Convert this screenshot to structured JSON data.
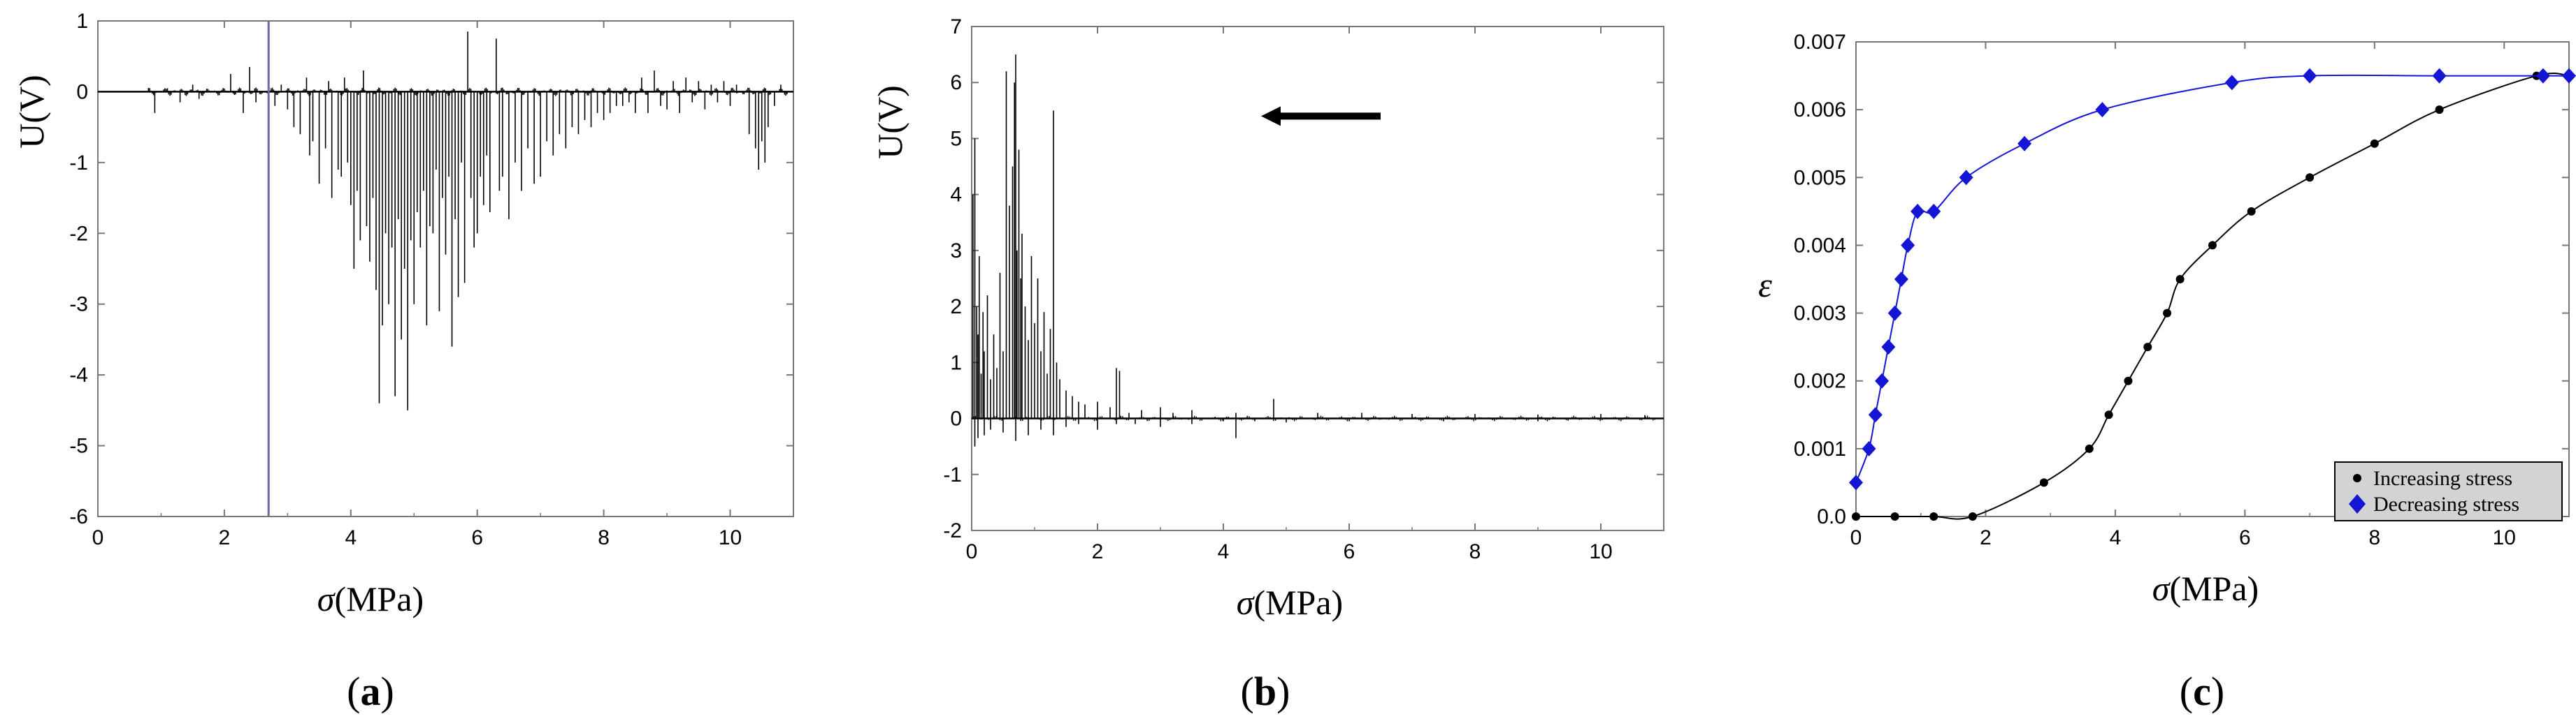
{
  "panels": [
    {
      "label": "a"
    },
    {
      "label": "b"
    },
    {
      "label": "c"
    }
  ],
  "chart_data": [
    {
      "type": "line",
      "panel": "a",
      "xlabel_symbol": "σ",
      "xlabel_unit": "(MPa)",
      "ylabel": "U(V)",
      "xlim": [
        0,
        11
      ],
      "ylim": [
        -6,
        1
      ],
      "xticks": [
        "0",
        "2",
        "4",
        "6",
        "8",
        "10"
      ],
      "yticks": [
        "-6",
        "-5",
        "-4",
        "-3",
        "-2",
        "-1",
        "0",
        "1"
      ],
      "grid": false,
      "vertical_marker_x": 2.7,
      "spikes": [
        [
          0.8,
          0.05
        ],
        [
          0.9,
          -0.3
        ],
        [
          1.1,
          0.05
        ],
        [
          1.3,
          -0.15
        ],
        [
          1.5,
          0.1
        ],
        [
          1.6,
          -0.1
        ],
        [
          2.1,
          0.25
        ],
        [
          2.3,
          -0.3
        ],
        [
          2.4,
          0.35
        ],
        [
          2.5,
          -0.15
        ],
        [
          2.7,
          0.2
        ],
        [
          2.8,
          -0.2
        ],
        [
          2.9,
          0.1
        ],
        [
          3.0,
          -0.25
        ],
        [
          3.1,
          -0.5
        ],
        [
          3.2,
          -0.6
        ],
        [
          3.3,
          0.2
        ],
        [
          3.35,
          -0.9
        ],
        [
          3.4,
          -0.7
        ],
        [
          3.5,
          -1.3
        ],
        [
          3.6,
          -0.8
        ],
        [
          3.65,
          0.15
        ],
        [
          3.7,
          -1.5
        ],
        [
          3.8,
          -1.1
        ],
        [
          3.85,
          -1.2
        ],
        [
          3.9,
          0.2
        ],
        [
          3.95,
          -1.0
        ],
        [
          4.0,
          -1.6
        ],
        [
          4.05,
          -2.5
        ],
        [
          4.1,
          -1.4
        ],
        [
          4.15,
          -2.1
        ],
        [
          4.2,
          0.3
        ],
        [
          4.25,
          -1.9
        ],
        [
          4.3,
          -2.4
        ],
        [
          4.35,
          -1.5
        ],
        [
          4.4,
          -2.8
        ],
        [
          4.45,
          -4.4
        ],
        [
          4.5,
          -3.3
        ],
        [
          4.55,
          -2.0
        ],
        [
          4.6,
          -3.0
        ],
        [
          4.65,
          -2.2
        ],
        [
          4.7,
          -4.3
        ],
        [
          4.75,
          -1.8
        ],
        [
          4.8,
          -3.5
        ],
        [
          4.85,
          -2.5
        ],
        [
          4.9,
          -4.5
        ],
        [
          4.95,
          -2.1
        ],
        [
          5.0,
          -3.0
        ],
        [
          5.05,
          -1.7
        ],
        [
          5.1,
          -2.2
        ],
        [
          5.15,
          -1.4
        ],
        [
          5.2,
          -3.3
        ],
        [
          5.25,
          -1.9
        ],
        [
          5.3,
          -2.0
        ],
        [
          5.35,
          -1.1
        ],
        [
          5.4,
          -3.1
        ],
        [
          5.45,
          -1.5
        ],
        [
          5.5,
          -2.3
        ],
        [
          5.55,
          -1.2
        ],
        [
          5.6,
          -3.6
        ],
        [
          5.65,
          -1.8
        ],
        [
          5.7,
          -2.9
        ],
        [
          5.75,
          -1.0
        ],
        [
          5.8,
          -2.7
        ],
        [
          5.85,
          0.85
        ],
        [
          5.9,
          -1.5
        ],
        [
          5.95,
          -2.2
        ],
        [
          6.0,
          -2.0
        ],
        [
          6.05,
          -1.2
        ],
        [
          6.1,
          -1.6
        ],
        [
          6.15,
          -0.9
        ],
        [
          6.2,
          -1.7
        ],
        [
          6.3,
          0.75
        ],
        [
          6.35,
          -1.4
        ],
        [
          6.4,
          -1.2
        ],
        [
          6.5,
          -1.8
        ],
        [
          6.6,
          -1.0
        ],
        [
          6.7,
          -1.4
        ],
        [
          6.8,
          -0.8
        ],
        [
          6.9,
          -1.3
        ],
        [
          7.0,
          -1.2
        ],
        [
          7.1,
          -0.7
        ],
        [
          7.2,
          -0.9
        ],
        [
          7.3,
          -0.6
        ],
        [
          7.4,
          -0.8
        ],
        [
          7.5,
          -0.5
        ],
        [
          7.6,
          -0.6
        ],
        [
          7.7,
          -0.4
        ],
        [
          7.8,
          -0.5
        ],
        [
          7.9,
          -0.3
        ],
        [
          8.0,
          -0.4
        ],
        [
          8.1,
          -0.3
        ],
        [
          8.2,
          -0.2
        ],
        [
          8.3,
          -0.2
        ],
        [
          8.4,
          -0.15
        ],
        [
          8.5,
          -0.3
        ],
        [
          8.6,
          0.2
        ],
        [
          8.7,
          -0.3
        ],
        [
          8.8,
          0.3
        ],
        [
          8.9,
          -0.2
        ],
        [
          9.0,
          -0.25
        ],
        [
          9.1,
          0.15
        ],
        [
          9.2,
          -0.3
        ],
        [
          9.3,
          0.2
        ],
        [
          9.4,
          -0.15
        ],
        [
          9.5,
          0.15
        ],
        [
          9.6,
          -0.25
        ],
        [
          9.7,
          0.1
        ],
        [
          9.8,
          -0.15
        ],
        [
          9.9,
          0.15
        ],
        [
          10.0,
          -0.2
        ],
        [
          10.1,
          0.1
        ],
        [
          10.3,
          -0.6
        ],
        [
          10.4,
          -0.8
        ],
        [
          10.45,
          -1.1
        ],
        [
          10.5,
          -0.7
        ],
        [
          10.55,
          -1.0
        ],
        [
          10.6,
          -0.5
        ],
        [
          10.7,
          -0.2
        ],
        [
          10.8,
          0.1
        ]
      ]
    },
    {
      "type": "line",
      "panel": "b",
      "xlabel_symbol": "σ",
      "xlabel_unit": "(MPa)",
      "ylabel": "U(V)",
      "xlim": [
        0,
        11
      ],
      "ylim": [
        -2,
        7
      ],
      "xticks": [
        "0",
        "2",
        "4",
        "6",
        "8",
        "10"
      ],
      "yticks": [
        "-2",
        "-1",
        "0",
        "1",
        "2",
        "3",
        "4",
        "5",
        "6",
        "7"
      ],
      "grid": false,
      "arrow": {
        "direction": "left",
        "from_x": 6.5,
        "to_x": 4.6,
        "y": 5.4
      },
      "spikes": [
        [
          0.02,
          4.0
        ],
        [
          0.05,
          5.0
        ],
        [
          0.08,
          2.0
        ],
        [
          0.1,
          1.5
        ],
        [
          0.12,
          2.9
        ],
        [
          0.15,
          0.8
        ],
        [
          0.18,
          1.9
        ],
        [
          0.2,
          1.2
        ],
        [
          0.25,
          2.2
        ],
        [
          0.3,
          0.7
        ],
        [
          0.35,
          1.5
        ],
        [
          0.4,
          0.9
        ],
        [
          0.45,
          2.6
        ],
        [
          0.5,
          1.2
        ],
        [
          0.55,
          6.2
        ],
        [
          0.6,
          3.8
        ],
        [
          0.65,
          4.5
        ],
        [
          0.68,
          6.0
        ],
        [
          0.7,
          6.5
        ],
        [
          0.72,
          3.0
        ],
        [
          0.75,
          4.8
        ],
        [
          0.78,
          2.5
        ],
        [
          0.8,
          3.3
        ],
        [
          0.85,
          2.0
        ],
        [
          0.9,
          1.4
        ],
        [
          0.95,
          2.9
        ],
        [
          1.0,
          1.7
        ],
        [
          1.05,
          2.5
        ],
        [
          1.1,
          1.2
        ],
        [
          1.15,
          1.9
        ],
        [
          1.2,
          0.8
        ],
        [
          1.25,
          1.6
        ],
        [
          1.3,
          5.5
        ],
        [
          1.35,
          1.0
        ],
        [
          1.4,
          0.7
        ],
        [
          1.5,
          0.5
        ],
        [
          1.6,
          0.4
        ],
        [
          1.7,
          0.3
        ],
        [
          1.8,
          0.25
        ],
        [
          2.0,
          0.3
        ],
        [
          2.2,
          0.2
        ],
        [
          2.3,
          0.9
        ],
        [
          2.35,
          0.85
        ],
        [
          2.5,
          0.1
        ],
        [
          2.7,
          0.15
        ],
        [
          3.0,
          0.2
        ],
        [
          3.2,
          0.1
        ],
        [
          3.5,
          0.15
        ],
        [
          4.2,
          0.1
        ],
        [
          4.8,
          0.35
        ],
        [
          5.5,
          0.1
        ],
        [
          6.2,
          0.1
        ],
        [
          7.0,
          0.08
        ],
        [
          8.0,
          0.08
        ],
        [
          9.0,
          0.07
        ],
        [
          10.0,
          0.08
        ],
        [
          10.7,
          0.06
        ]
      ],
      "neg_spikes": [
        [
          0.05,
          -0.5
        ],
        [
          0.1,
          -0.35
        ],
        [
          0.2,
          -0.3
        ],
        [
          0.3,
          -0.2
        ],
        [
          0.5,
          -0.25
        ],
        [
          0.7,
          -0.4
        ],
        [
          0.9,
          -0.3
        ],
        [
          1.1,
          -0.2
        ],
        [
          1.3,
          -0.3
        ],
        [
          1.5,
          -0.15
        ],
        [
          1.7,
          -0.1
        ],
        [
          2.0,
          -0.2
        ],
        [
          2.3,
          -0.1
        ],
        [
          2.6,
          -0.1
        ],
        [
          3.0,
          -0.15
        ],
        [
          3.5,
          -0.1
        ],
        [
          4.0,
          -0.05
        ],
        [
          4.2,
          -0.35
        ],
        [
          4.5,
          -0.05
        ],
        [
          5.0,
          -0.07
        ],
        [
          6.0,
          -0.05
        ],
        [
          7.5,
          -0.05
        ],
        [
          9.0,
          -0.05
        ]
      ]
    },
    {
      "type": "scatter",
      "panel": "c",
      "xlabel_symbol": "σ",
      "xlabel_unit": "(MPa)",
      "ylabel": "ε",
      "xlim": [
        0,
        11
      ],
      "ylim": [
        0,
        0.007
      ],
      "xticks": [
        "0",
        "2",
        "4",
        "6",
        "8",
        "10"
      ],
      "yticks": [
        "0.0",
        "0.001",
        "0.002",
        "0.003",
        "0.004",
        "0.005",
        "0.006",
        "0.007"
      ],
      "grid": false,
      "legend_position": "bottom-right",
      "series": [
        {
          "name": "Increasing stress",
          "color": "#000000",
          "marker": "circle",
          "x": [
            0,
            0.6,
            1.2,
            1.8,
            2.9,
            3.6,
            3.9,
            4.2,
            4.5,
            4.8,
            5.0,
            5.5,
            6.1,
            7.0,
            8.0,
            9.0,
            10.5,
            11.0
          ],
          "y": [
            0.0,
            0.0,
            0.0,
            0.0,
            0.0005,
            0.001,
            0.0015,
            0.002,
            0.0025,
            0.003,
            0.0035,
            0.004,
            0.0045,
            0.005,
            0.0055,
            0.006,
            0.0065,
            0.0065
          ]
        },
        {
          "name": "Decreasing stress",
          "color": "#1515d6",
          "marker": "diamond",
          "x": [
            0,
            0.2,
            0.3,
            0.4,
            0.5,
            0.6,
            0.7,
            0.8,
            0.95,
            1.2,
            1.7,
            2.6,
            3.8,
            5.8,
            7.0,
            9.0,
            10.6,
            11.0
          ],
          "y": [
            0.0005,
            0.001,
            0.0015,
            0.002,
            0.0025,
            0.003,
            0.0035,
            0.004,
            0.0045,
            0.0045,
            0.005,
            0.0055,
            0.006,
            0.0064,
            0.0065,
            0.0065,
            0.0065,
            0.0065
          ]
        }
      ]
    }
  ]
}
